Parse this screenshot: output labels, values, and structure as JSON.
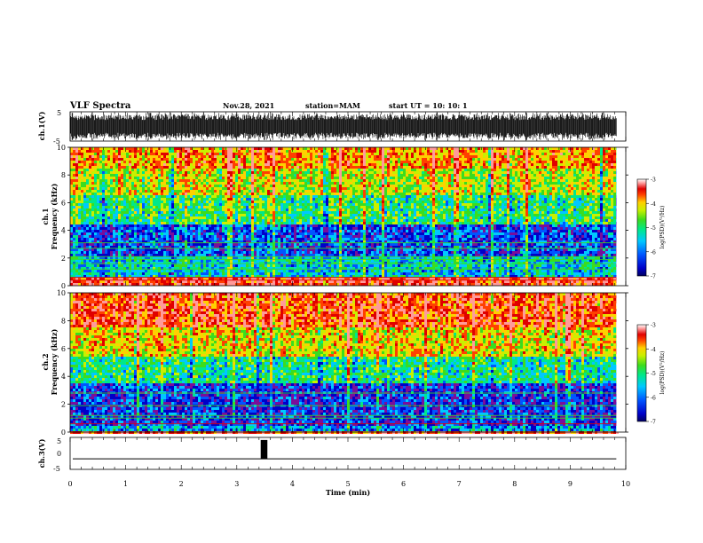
{
  "header": {
    "title": "VLF Spectra",
    "date": "Nov.28, 2021",
    "station": "station=MAM",
    "start_ut": "start UT =  10: 10: 1"
  },
  "chart_data": [
    {
      "type": "line",
      "name": "ch1-waveform",
      "ylabel": "ch.1(V)",
      "ylim": [
        -5,
        5
      ],
      "yticks": [
        "5",
        "-5"
      ],
      "xlim": [
        0,
        10
      ],
      "note": "dense broadband waveform saturating between about -4 and +4 V"
    },
    {
      "type": "heatmap",
      "name": "ch1-spectrogram",
      "ylabel": "ch.1\nFrequency (kHz)",
      "ylim": [
        0,
        10
      ],
      "yticks": [
        "0",
        "2",
        "4",
        "6",
        "8",
        "10"
      ],
      "xlim": [
        0,
        9.83
      ],
      "z_range": [
        -7,
        -3
      ],
      "colorbar_ticks": [
        "-3",
        "-4",
        "-5",
        "-6",
        "-7"
      ],
      "colorbar_label": "log(PSD)(V²/Hz)",
      "levels_by_band": [
        {
          "f": [
            0,
            0.6
          ],
          "level": -3.6
        },
        {
          "f": [
            0.6,
            2.2
          ],
          "level": -5.6
        },
        {
          "f": [
            2.2,
            4.5
          ],
          "level": -6.2
        },
        {
          "f": [
            4.5,
            6.5
          ],
          "level": -5.2
        },
        {
          "f": [
            6.5,
            8.5
          ],
          "level": -4.6
        },
        {
          "f": [
            8.5,
            10
          ],
          "level": -4.1
        }
      ],
      "narrowband_lines_khz": [
        0.4,
        0.6,
        1.2,
        1.6,
        1.9,
        2.1,
        2.7,
        3.1
      ]
    },
    {
      "type": "heatmap",
      "name": "ch2-spectrogram",
      "ylabel": "ch.2\nFrequency (kHz)",
      "ylim": [
        0,
        10
      ],
      "yticks": [
        "0",
        "2",
        "4",
        "6",
        "8",
        "10"
      ],
      "xlim": [
        0,
        9.83
      ],
      "z_range": [
        -7,
        -3
      ],
      "colorbar_ticks": [
        "-3",
        "-4",
        "-5",
        "-6",
        "-7"
      ],
      "colorbar_label": "log(PSD)(V²/Hz)",
      "levels_by_band": [
        {
          "f": [
            0,
            0.5
          ],
          "level": -5.8
        },
        {
          "f": [
            0.5,
            3.5
          ],
          "level": -6.3
        },
        {
          "f": [
            3.5,
            5.5
          ],
          "level": -5.3
        },
        {
          "f": [
            5.5,
            7.5
          ],
          "level": -4.4
        },
        {
          "f": [
            7.5,
            10
          ],
          "level": -3.7
        }
      ],
      "narrowband_lines_khz": [
        0.6,
        1.0,
        1.2,
        1.9,
        2.8
      ]
    },
    {
      "type": "line",
      "name": "ch3-waveform",
      "ylabel": "ch.3(V)",
      "ylim": [
        -5,
        5
      ],
      "yticks": [
        "5",
        "0",
        "-5"
      ],
      "xlim": [
        0,
        10
      ],
      "baseline": -1.7,
      "pulse": {
        "t_start": 3.43,
        "t_end": 3.55,
        "min": -1.7,
        "max": 4.2
      }
    }
  ],
  "xaxis": {
    "label": "Time (min)",
    "ticks": [
      "0",
      "1",
      "2",
      "3",
      "4",
      "5",
      "6",
      "7",
      "8",
      "9",
      "10"
    ]
  },
  "colormap": [
    "#7a0e9a",
    "#0000c8",
    "#0055ff",
    "#00c8ff",
    "#00e88a",
    "#3cdc1e",
    "#c8f000",
    "#ffd000",
    "#ff4000",
    "#e00000",
    "#ff9a9a",
    "#ffffff"
  ]
}
